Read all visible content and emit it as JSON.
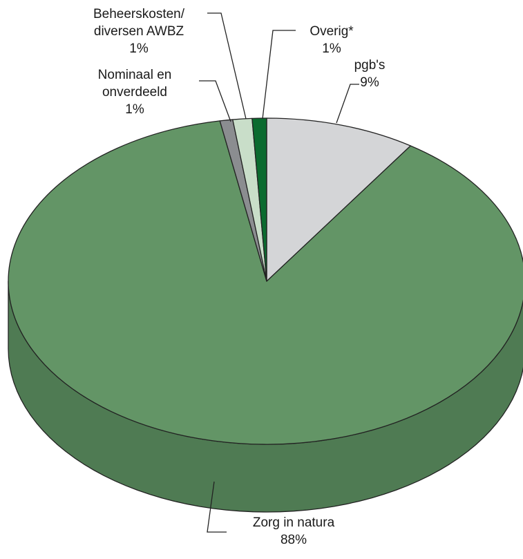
{
  "chart_data": {
    "type": "pie",
    "style": "3d",
    "start_angle_deg": 0,
    "direction": "clockwise",
    "slices": [
      {
        "name_lines": [
          "pgb's"
        ],
        "label": "pgb's",
        "pct_label": "9%",
        "value": 9.4,
        "color": "#d4d5d7",
        "side_color": "#b6b7b9"
      },
      {
        "name_lines": [
          "Zorg in natura"
        ],
        "label": "Zorg in natura",
        "pct_label": "88%",
        "value": 87.7,
        "color": "#639566",
        "side_color": "#4f7b53"
      },
      {
        "name_lines": [
          "Nominaal en",
          "onverdeeld"
        ],
        "label": "Nominaal en onverdeeld",
        "pct_label": "1%",
        "value": 0.8,
        "color": "#8b8d90",
        "side_color": "#6d6f72"
      },
      {
        "name_lines": [
          "Beheerskosten/",
          "diversen AWBZ"
        ],
        "label": "Beheerskosten/ diversen AWBZ",
        "pct_label": "1%",
        "value": 1.2,
        "color": "#c9dec9",
        "side_color": "#a7bfa7"
      },
      {
        "name_lines": [
          "Overig*"
        ],
        "label": "Overig*",
        "pct_label": "1%",
        "value": 0.9,
        "color": "#0b6b2f",
        "side_color": "#085426"
      }
    ]
  }
}
